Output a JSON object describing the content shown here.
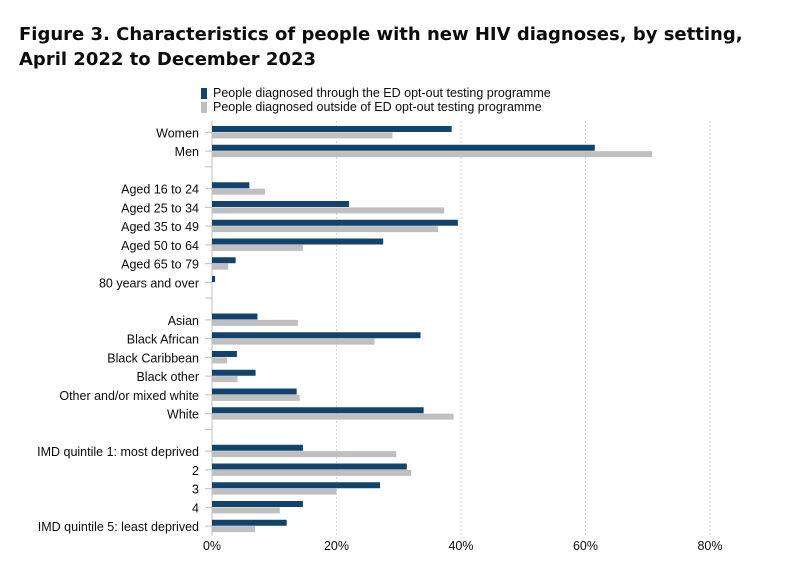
{
  "title": "Figure 3. Characteristics of people with new HIV diagnoses, by setting, April 2022 to December 2023",
  "chart_data": {
    "type": "bar",
    "orientation": "horizontal",
    "title": "Figure 3. Characteristics of people with new HIV diagnoses, by setting, April 2022 to December 2023",
    "xlabel": "",
    "ylabel": "",
    "xlim": [
      0,
      80
    ],
    "x_ticks": [
      "0%",
      "20%",
      "40%",
      "60%",
      "80%"
    ],
    "grid": "vertical dashed",
    "legend_position": "top",
    "categories": [
      "Women",
      "Men",
      "Aged 16 to 24",
      "Aged 25 to 34",
      "Aged 35 to 49",
      "Aged 50 to 64",
      "Aged 65 to 79",
      "80 years and over",
      "Asian",
      "Black African",
      "Black Caribbean",
      "Black other",
      "Other and/or mixed white",
      "White",
      "IMD quintile 1: most deprived",
      "2",
      "3",
      "4",
      "IMD quintile 5: least deprived"
    ],
    "groups": [
      2,
      6,
      6,
      5
    ],
    "series": [
      {
        "name": "People diagnosed through the ED opt-out testing programme",
        "color": "#12436d",
        "values": [
          38.5,
          61.5,
          6,
          22,
          39.5,
          27.5,
          3.8,
          0.5,
          7.3,
          33.5,
          4,
          7,
          13.6,
          34,
          14.6,
          31.3,
          27,
          14.6,
          12
        ]
      },
      {
        "name": "People diagnosed outside of ED opt-out testing programme",
        "color": "#bfbfbf",
        "values": [
          29,
          70.7,
          8.5,
          37.3,
          36.3,
          14.6,
          2.6,
          0,
          13.8,
          26.1,
          2.4,
          4.1,
          14.1,
          38.8,
          29.6,
          32,
          20,
          10.9,
          6.9
        ]
      }
    ]
  }
}
